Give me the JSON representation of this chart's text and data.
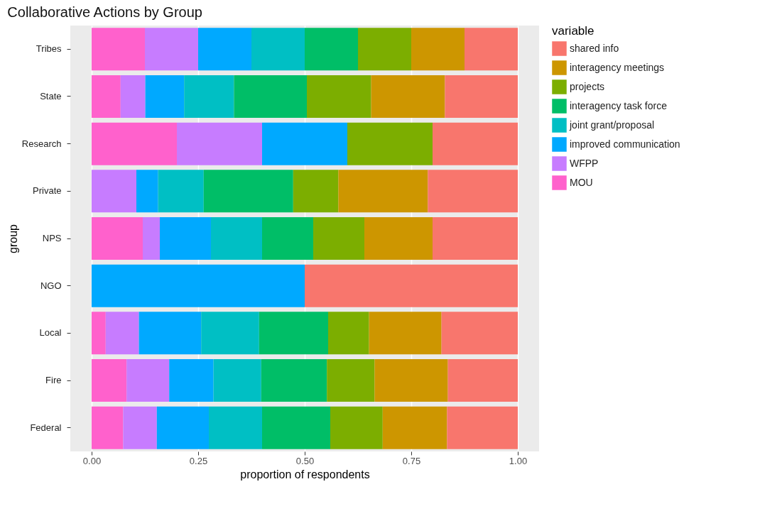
{
  "chart_data": {
    "type": "bar",
    "orientation": "horizontal",
    "stacked": true,
    "title": "Collaborative Actions by Group",
    "xlabel": "proportion of respondents",
    "ylabel": "group",
    "legend_title": "variable",
    "legend": "right",
    "grid": "x",
    "categories": [
      "Tribes",
      "State",
      "Research",
      "Private",
      "NPS",
      "NGO",
      "Local",
      "Fire",
      "Federal"
    ],
    "xlim": [
      -0.05,
      1.05
    ],
    "xticks": [
      {
        "value": 0,
        "label": "0.00"
      },
      {
        "value": 0.25,
        "label": "0.25"
      },
      {
        "value": 0.5,
        "label": "0.50"
      },
      {
        "value": 0.75,
        "label": "0.75"
      },
      {
        "value": 1,
        "label": "1.00"
      }
    ],
    "series": [
      {
        "name": "MOU",
        "color": "#ff61cc",
        "values": [
          0.125,
          0.068,
          0.2,
          0,
          0.12,
          0,
          0.033,
          0.082,
          0.074
        ]
      },
      {
        "name": "WFPP",
        "color": "#c77cff",
        "values": [
          0.125,
          0.058,
          0.2,
          0.105,
          0.04,
          0,
          0.078,
          0.1,
          0.079
        ]
      },
      {
        "name": "improved communication",
        "color": "#00a9ff",
        "values": [
          0.125,
          0.091,
          0.2,
          0.051,
          0.12,
          0.5,
          0.146,
          0.104,
          0.122
        ]
      },
      {
        "name": "joint grant/proposal",
        "color": "#00bfc4",
        "values": [
          0.125,
          0.117,
          0,
          0.107,
          0.12,
          0,
          0.136,
          0.112,
          0.125
        ]
      },
      {
        "name": "interagency task force",
        "color": "#00be67",
        "values": [
          0.125,
          0.171,
          0,
          0.21,
          0.12,
          0,
          0.162,
          0.154,
          0.16
        ]
      },
      {
        "name": "projects",
        "color": "#7cae00",
        "values": [
          0.125,
          0.151,
          0.2,
          0.106,
          0.12,
          0,
          0.096,
          0.112,
          0.123
        ]
      },
      {
        "name": "interagency meetings",
        "color": "#cd9600",
        "values": [
          0.125,
          0.173,
          0,
          0.21,
          0.16,
          0,
          0.17,
          0.172,
          0.151
        ]
      },
      {
        "name": "shared info",
        "color": "#f8766d",
        "values": [
          0.125,
          0.171,
          0.2,
          0.211,
          0.2,
          0.5,
          0.179,
          0.164,
          0.166
        ]
      }
    ]
  }
}
